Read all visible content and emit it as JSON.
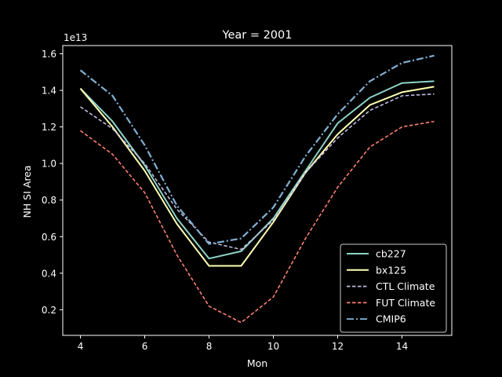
{
  "chart_data": {
    "type": "line",
    "title": "Year = 2001",
    "xlabel": "Mon",
    "ylabel": "NH SI Area",
    "offset_label": "1e13",
    "x": [
      4,
      5,
      6,
      7,
      8,
      9,
      10,
      11,
      12,
      13,
      14,
      15
    ],
    "xlim": [
      3.45,
      15.55
    ],
    "ylim": [
      0.06,
      1.645
    ],
    "xticks": [
      4,
      6,
      8,
      10,
      12,
      14
    ],
    "yticks": [
      0.2,
      0.4,
      0.6,
      0.8,
      1.0,
      1.2,
      1.4,
      1.6
    ],
    "ytick_labels": [
      "0.2",
      "0.4",
      "0.6",
      "0.8",
      "1.0",
      "1.2",
      "1.4",
      "1.6"
    ],
    "grid": false,
    "legend_position": "lower-right",
    "series": [
      {
        "name": "cb227",
        "color": "#8dd3c7",
        "style": "solid",
        "values": [
          1.41,
          1.23,
          0.99,
          0.7,
          0.48,
          0.52,
          0.7,
          0.96,
          1.22,
          1.36,
          1.44,
          1.45
        ]
      },
      {
        "name": "bx125",
        "color": "#ffffb3",
        "style": "solid",
        "values": [
          1.41,
          1.2,
          0.96,
          0.67,
          0.44,
          0.44,
          0.68,
          0.95,
          1.16,
          1.32,
          1.39,
          1.42
        ]
      },
      {
        "name": "CTL Climate",
        "color": "#bebada",
        "style": "dashed",
        "values": [
          1.31,
          1.19,
          1.0,
          0.75,
          0.57,
          0.53,
          0.69,
          0.95,
          1.14,
          1.29,
          1.37,
          1.38
        ]
      },
      {
        "name": "FUT Climate",
        "color": "#fb8072",
        "style": "dashed",
        "values": [
          1.18,
          1.05,
          0.84,
          0.5,
          0.22,
          0.13,
          0.27,
          0.59,
          0.87,
          1.09,
          1.2,
          1.23
        ]
      },
      {
        "name": "CMIP6",
        "color": "#80b1d3",
        "style": "dashdot",
        "values": [
          1.51,
          1.37,
          1.1,
          0.77,
          0.56,
          0.59,
          0.76,
          1.04,
          1.27,
          1.45,
          1.55,
          1.59
        ]
      }
    ]
  }
}
